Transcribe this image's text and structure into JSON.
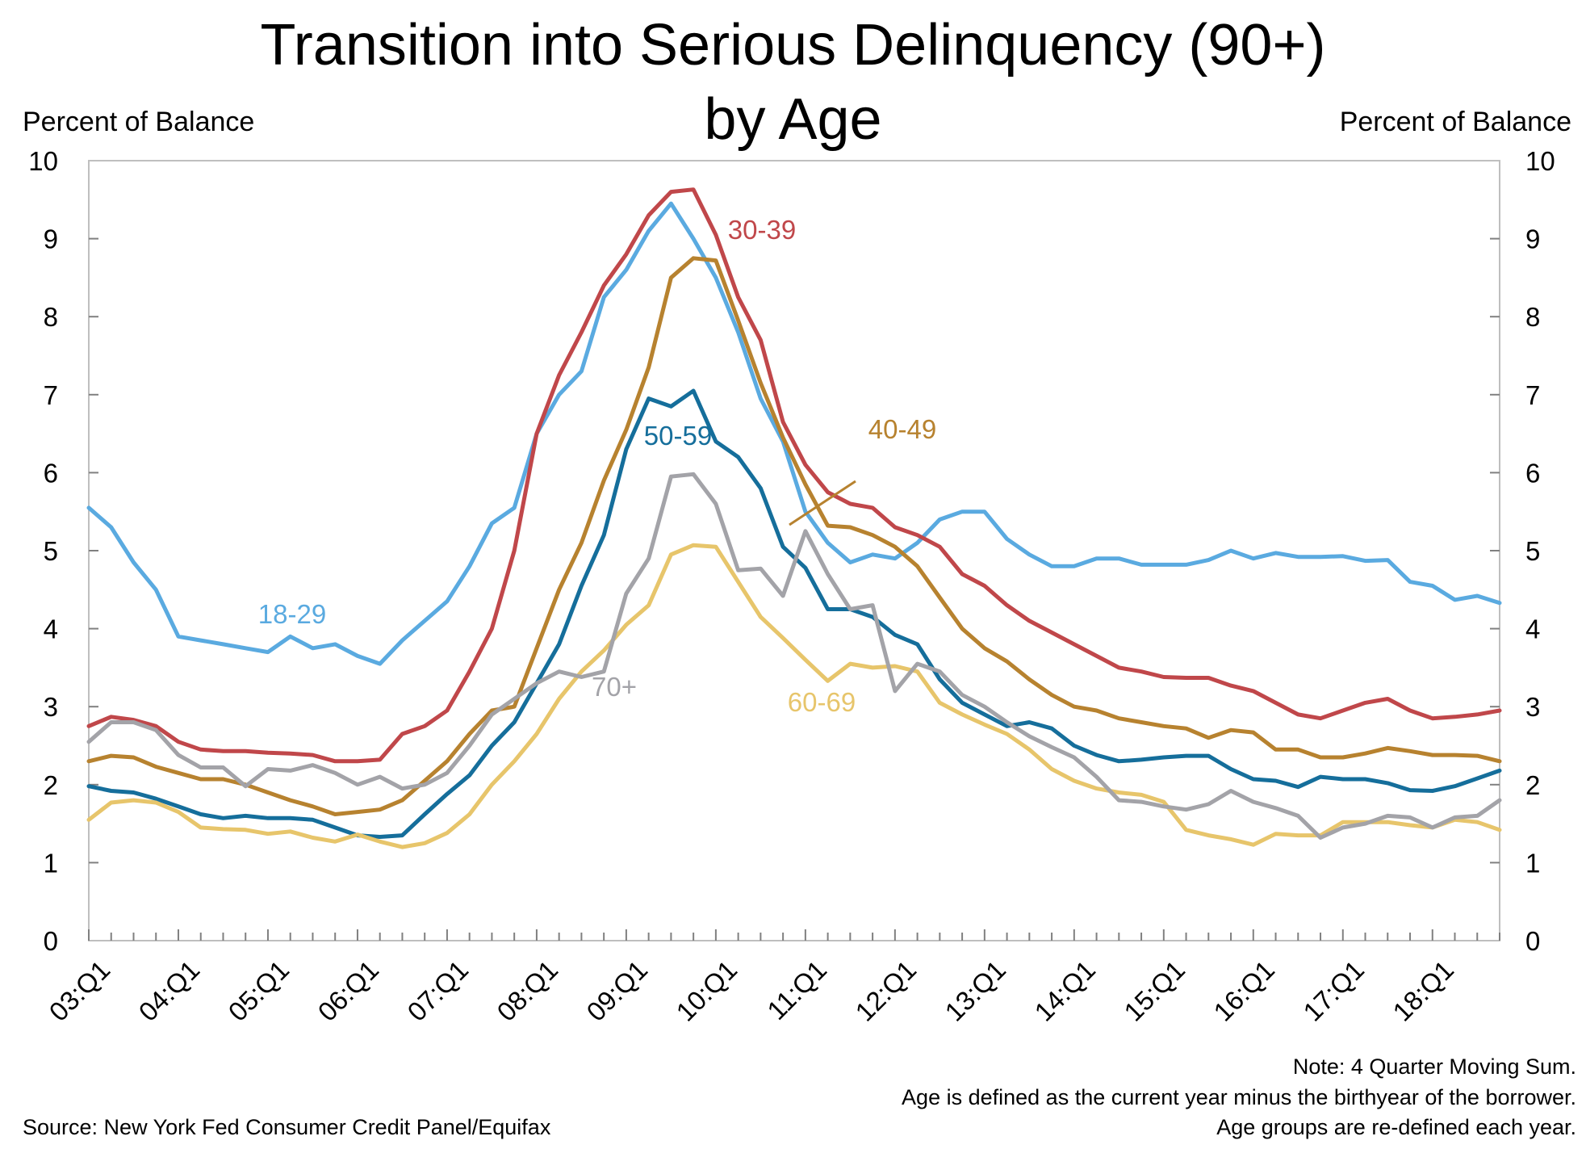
{
  "chart_data": {
    "type": "line",
    "title": "Transition into Serious Delinquency (90+)",
    "subtitle": "by Age",
    "ylabel_left": "Percent of Balance",
    "ylabel_right": "Percent of Balance",
    "ylim": [
      0,
      10
    ],
    "y_ticks": [
      "0",
      "1",
      "2",
      "3",
      "4",
      "5",
      "6",
      "7",
      "8",
      "9",
      "10"
    ],
    "x_tick_labels": [
      "03:Q1",
      "04:Q1",
      "05:Q1",
      "06:Q1",
      "07:Q1",
      "08:Q1",
      "09:Q1",
      "10:Q1",
      "11:Q1",
      "12:Q1",
      "13:Q1",
      "14:Q1",
      "15:Q1",
      "16:Q1",
      "17:Q1",
      "18:Q1"
    ],
    "x_start": "03:Q1",
    "x_end": "18:Q4",
    "grid": false,
    "series": [
      {
        "name": "18-29",
        "color": "#5aaae0",
        "values": [
          5.55,
          5.3,
          4.85,
          4.5,
          3.9,
          3.85,
          3.8,
          3.75,
          3.7,
          3.9,
          3.75,
          3.8,
          3.65,
          3.55,
          3.85,
          4.1,
          4.35,
          4.8,
          5.35,
          5.55,
          6.5,
          7.0,
          7.3,
          8.25,
          8.6,
          9.1,
          9.45,
          9.0,
          8.5,
          7.8,
          6.95,
          6.4,
          5.5,
          5.1,
          4.85,
          4.95,
          4.9,
          5.1,
          5.4,
          5.5,
          5.5,
          5.15,
          4.95,
          4.8,
          4.8,
          4.9,
          4.9,
          4.82,
          4.82,
          4.82,
          4.88,
          5.0,
          4.9,
          4.97,
          4.92,
          4.92,
          4.93,
          4.87,
          4.88,
          4.6,
          4.55,
          4.37,
          4.42,
          4.33
        ]
      },
      {
        "name": "30-39",
        "color": "#c0474a",
        "values": [
          2.75,
          2.87,
          2.83,
          2.75,
          2.55,
          2.45,
          2.43,
          2.43,
          2.41,
          2.4,
          2.38,
          2.3,
          2.3,
          2.32,
          2.65,
          2.75,
          2.95,
          3.45,
          4.0,
          5.0,
          6.5,
          7.25,
          7.8,
          8.4,
          8.8,
          9.3,
          9.6,
          9.63,
          9.05,
          8.25,
          7.7,
          6.65,
          6.1,
          5.75,
          5.6,
          5.55,
          5.3,
          5.2,
          5.05,
          4.7,
          4.55,
          4.3,
          4.1,
          3.95,
          3.8,
          3.65,
          3.5,
          3.45,
          3.38,
          3.37,
          3.37,
          3.27,
          3.2,
          3.05,
          2.9,
          2.85,
          2.95,
          3.05,
          3.1,
          2.95,
          2.85,
          2.87,
          2.9,
          2.95
        ]
      },
      {
        "name": "40-49",
        "color": "#b7822f",
        "values": [
          2.3,
          2.37,
          2.35,
          2.23,
          2.15,
          2.07,
          2.07,
          2.0,
          1.9,
          1.8,
          1.72,
          1.62,
          1.65,
          1.68,
          1.8,
          2.05,
          2.3,
          2.65,
          2.95,
          3.0,
          3.75,
          4.5,
          5.1,
          5.9,
          6.55,
          7.35,
          8.5,
          8.75,
          8.72,
          7.95,
          7.15,
          6.45,
          5.85,
          5.32,
          5.3,
          5.2,
          5.05,
          4.8,
          4.4,
          4.0,
          3.75,
          3.58,
          3.35,
          3.15,
          3.0,
          2.95,
          2.85,
          2.8,
          2.75,
          2.72,
          2.6,
          2.7,
          2.67,
          2.45,
          2.45,
          2.35,
          2.35,
          2.4,
          2.47,
          2.43,
          2.38,
          2.38,
          2.37,
          2.3
        ]
      },
      {
        "name": "50-59",
        "color": "#156e9b",
        "values": [
          1.98,
          1.92,
          1.9,
          1.82,
          1.72,
          1.62,
          1.57,
          1.6,
          1.57,
          1.57,
          1.55,
          1.45,
          1.35,
          1.33,
          1.35,
          1.62,
          1.88,
          2.12,
          2.5,
          2.8,
          3.3,
          3.8,
          4.55,
          5.2,
          6.3,
          6.95,
          6.85,
          7.05,
          6.4,
          6.2,
          5.8,
          5.05,
          4.78,
          4.25,
          4.25,
          4.15,
          3.92,
          3.8,
          3.35,
          3.05,
          2.9,
          2.75,
          2.8,
          2.72,
          2.5,
          2.38,
          2.3,
          2.32,
          2.35,
          2.37,
          2.37,
          2.2,
          2.07,
          2.05,
          1.97,
          2.1,
          2.07,
          2.07,
          2.02,
          1.93,
          1.92,
          1.98,
          2.08,
          2.18
        ]
      },
      {
        "name": "60-69",
        "color": "#e7c56b",
        "values": [
          1.55,
          1.77,
          1.8,
          1.77,
          1.65,
          1.45,
          1.43,
          1.42,
          1.37,
          1.4,
          1.32,
          1.27,
          1.36,
          1.27,
          1.2,
          1.25,
          1.38,
          1.62,
          2.0,
          2.3,
          2.65,
          3.1,
          3.45,
          3.72,
          4.05,
          4.3,
          4.95,
          5.07,
          5.05,
          4.6,
          4.15,
          3.88,
          3.6,
          3.33,
          3.55,
          3.5,
          3.52,
          3.45,
          3.05,
          2.9,
          2.77,
          2.65,
          2.45,
          2.2,
          2.05,
          1.95,
          1.9,
          1.87,
          1.78,
          1.42,
          1.35,
          1.3,
          1.23,
          1.37,
          1.35,
          1.35,
          1.52,
          1.52,
          1.52,
          1.48,
          1.45,
          1.55,
          1.52,
          1.42
        ]
      },
      {
        "name": "70+",
        "color": "#a3a3a8",
        "values": [
          2.55,
          2.8,
          2.8,
          2.7,
          2.38,
          2.22,
          2.22,
          1.98,
          2.2,
          2.18,
          2.25,
          2.15,
          2.0,
          2.1,
          1.95,
          2.0,
          2.15,
          2.5,
          2.9,
          3.1,
          3.3,
          3.45,
          3.38,
          3.45,
          4.45,
          4.9,
          5.95,
          5.98,
          5.6,
          4.75,
          4.77,
          4.42,
          5.25,
          4.7,
          4.25,
          4.3,
          3.2,
          3.55,
          3.45,
          3.15,
          3.0,
          2.8,
          2.62,
          2.48,
          2.35,
          2.1,
          1.8,
          1.78,
          1.72,
          1.68,
          1.75,
          1.92,
          1.78,
          1.7,
          1.6,
          1.32,
          1.45,
          1.5,
          1.6,
          1.58,
          1.45,
          1.58,
          1.6,
          1.8
        ]
      }
    ]
  },
  "labels": {
    "title": "Transition into Serious Delinquency (90+)",
    "subtitle": "by Age",
    "axis_left": "Percent of Balance",
    "axis_right": "Percent of Balance",
    "note_1": "Note: 4 Quarter Moving Sum.",
    "note_2": "Age is defined as the current year minus the birthyear of the borrower.",
    "note_3": "Age groups are re-defined each year.",
    "source": "Source: New York Fed Consumer Credit Panel/Equifax"
  }
}
